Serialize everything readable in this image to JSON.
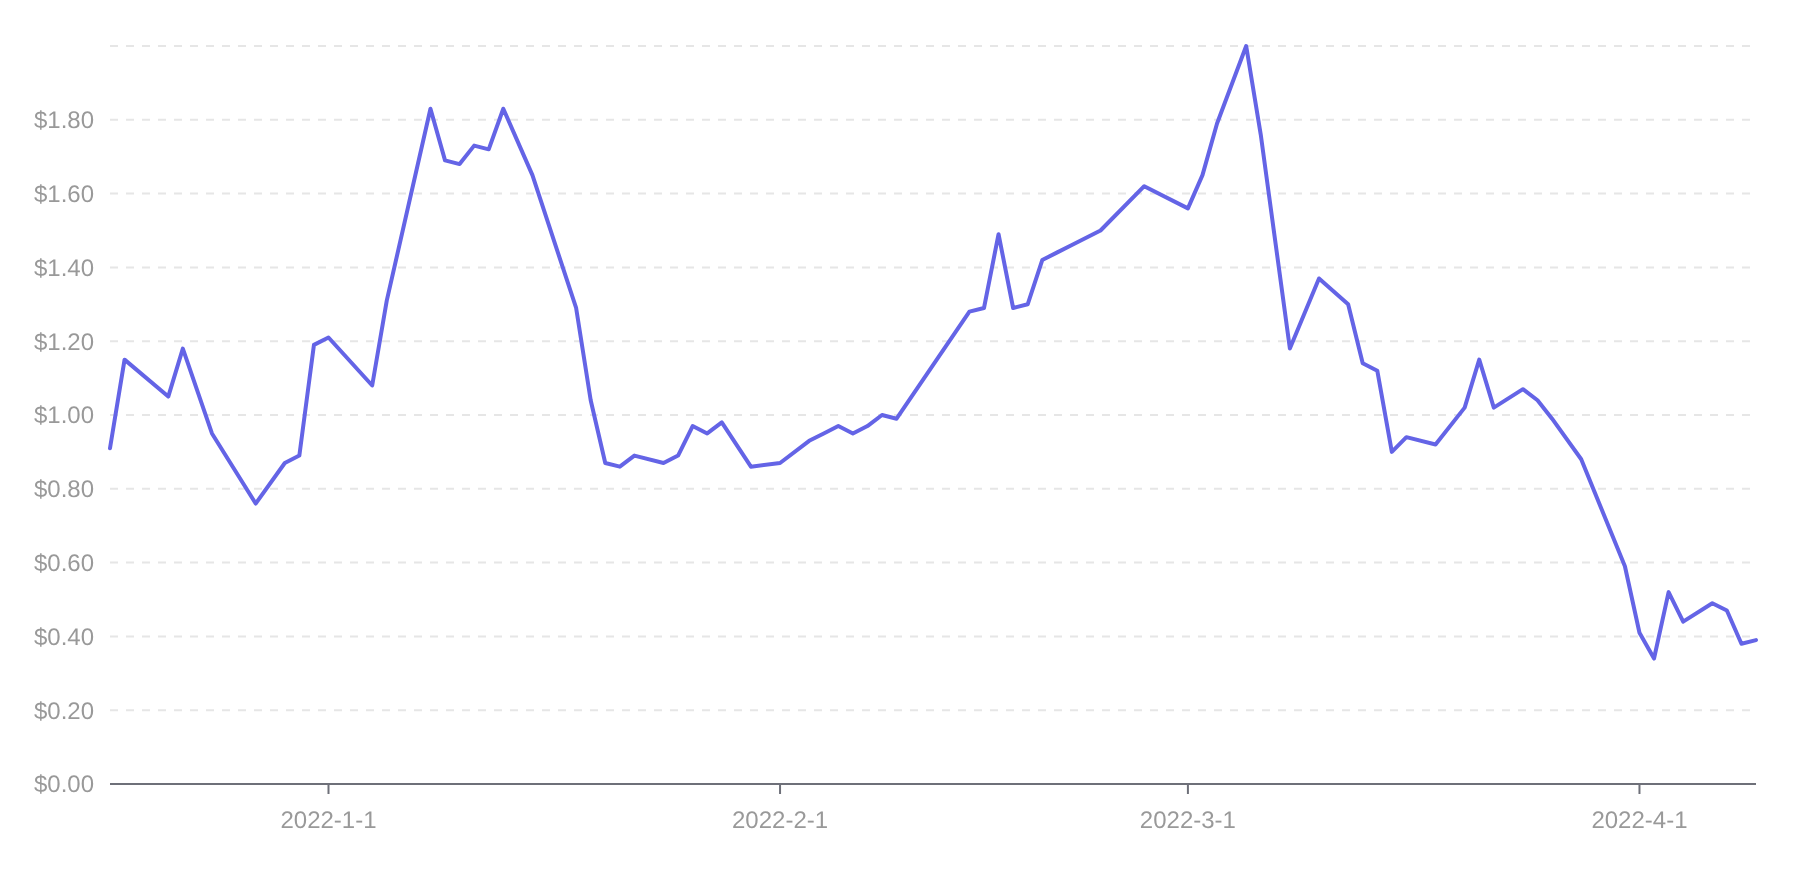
{
  "chart_data": {
    "type": "line",
    "x": [
      "2021-12-17",
      "2021-12-18",
      "2021-12-21",
      "2021-12-22",
      "2021-12-24",
      "2021-12-27",
      "2021-12-29",
      "2021-12-30",
      "2021-12-31",
      "2022-01-01",
      "2022-01-04",
      "2022-01-05",
      "2022-01-08",
      "2022-01-09",
      "2022-01-10",
      "2022-01-11",
      "2022-01-12",
      "2022-01-13",
      "2022-01-15",
      "2022-01-18",
      "2022-01-19",
      "2022-01-20",
      "2022-01-21",
      "2022-01-22",
      "2022-01-24",
      "2022-01-25",
      "2022-01-26",
      "2022-01-27",
      "2022-01-28",
      "2022-01-30",
      "2022-02-01",
      "2022-02-03",
      "2022-02-04",
      "2022-02-05",
      "2022-02-06",
      "2022-02-07",
      "2022-02-08",
      "2022-02-09",
      "2022-02-14",
      "2022-02-15",
      "2022-02-16",
      "2022-02-17",
      "2022-02-18",
      "2022-02-19",
      "2022-02-20",
      "2022-02-21",
      "2022-02-23",
      "2022-02-26",
      "2022-03-01",
      "2022-03-02",
      "2022-03-03",
      "2022-03-05",
      "2022-03-06",
      "2022-03-08",
      "2022-03-10",
      "2022-03-12",
      "2022-03-13",
      "2022-03-14",
      "2022-03-15",
      "2022-03-16",
      "2022-03-18",
      "2022-03-20",
      "2022-03-21",
      "2022-03-22",
      "2022-03-24",
      "2022-03-25",
      "2022-03-26",
      "2022-03-28",
      "2022-03-31",
      "2022-04-01",
      "2022-04-02",
      "2022-04-03",
      "2022-04-04",
      "2022-04-06",
      "2022-04-07",
      "2022-04-08",
      "2022-04-09"
    ],
    "series": [
      {
        "color": "#6464e6",
        "values": [
          0.91,
          1.15,
          1.05,
          1.18,
          0.95,
          0.76,
          0.87,
          0.89,
          1.19,
          1.21,
          1.08,
          1.31,
          1.83,
          1.69,
          1.68,
          1.73,
          1.72,
          1.83,
          1.65,
          1.29,
          1.04,
          0.87,
          0.86,
          0.89,
          0.87,
          0.89,
          0.97,
          0.95,
          0.98,
          0.86,
          0.87,
          0.93,
          0.95,
          0.97,
          0.95,
          0.97,
          1.0,
          0.99,
          1.28,
          1.29,
          1.49,
          1.29,
          1.3,
          1.42,
          1.44,
          1.46,
          1.5,
          1.62,
          1.56,
          1.65,
          1.79,
          2.0,
          1.76,
          1.18,
          1.37,
          1.3,
          1.14,
          1.12,
          0.9,
          0.94,
          0.92,
          1.02,
          1.15,
          1.02,
          1.07,
          1.04,
          0.99,
          0.88,
          0.59,
          0.41,
          0.34,
          0.52,
          0.44,
          0.49,
          0.47,
          0.38,
          0.39
        ]
      }
    ],
    "xlim": [
      "2021-12-17",
      "2022-04-09"
    ],
    "xticks": [
      {
        "value": "2022-01-01",
        "label": "2022-1-1"
      },
      {
        "value": "2022-02-01",
        "label": "2022-2-1"
      },
      {
        "value": "2022-03-01",
        "label": "2022-3-1"
      },
      {
        "value": "2022-04-01",
        "label": "2022-4-1"
      }
    ],
    "ylim": [
      0,
      2.0
    ],
    "yticks": [
      {
        "value": 0,
        "label": "$0.00"
      },
      {
        "value": 0.2,
        "label": "$0.20"
      },
      {
        "value": 0.4,
        "label": "$0.40"
      },
      {
        "value": 0.6,
        "label": "$0.60"
      },
      {
        "value": 0.8,
        "label": "$0.80"
      },
      {
        "value": 1.0,
        "label": "$1.00"
      },
      {
        "value": 1.2,
        "label": "$1.20"
      },
      {
        "value": 1.4,
        "label": "$1.40"
      },
      {
        "value": 1.6,
        "label": "$1.60"
      },
      {
        "value": 1.8,
        "label": "$1.80"
      },
      {
        "value": 2.0,
        "label": null
      }
    ],
    "grid": "y",
    "marker": "none",
    "line_style": "solid"
  }
}
